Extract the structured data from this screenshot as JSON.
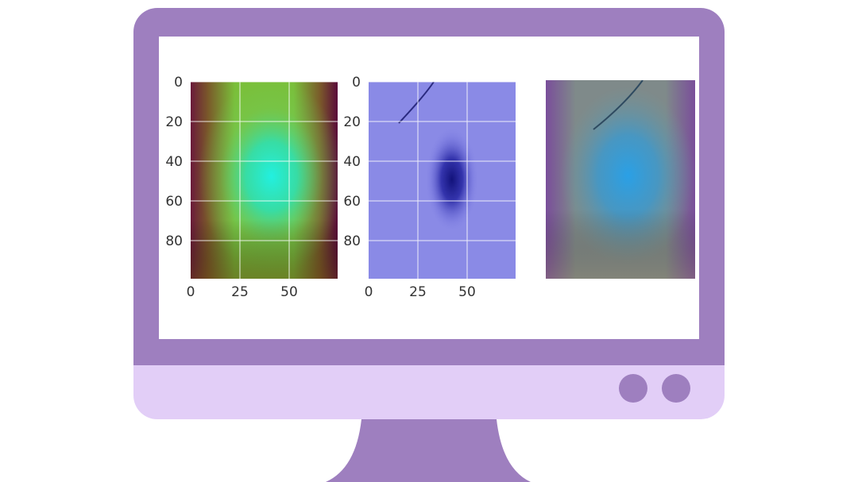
{
  "colors": {
    "frame": "#9e7fbf",
    "chin": "#e2cef7",
    "button": "#9e7fbf",
    "screen": "#ffffff"
  },
  "icons": {
    "buttons": [
      "circle-button-icon",
      "circle-button-icon"
    ]
  },
  "panels": [
    {
      "kind": "heatmap",
      "y_ticks": [
        "0",
        "20",
        "40",
        "60",
        "80"
      ],
      "x_ticks": [
        "0",
        "25",
        "50"
      ]
    },
    {
      "kind": "image",
      "y_ticks": [
        "0",
        "20",
        "40",
        "60",
        "80"
      ],
      "x_ticks": [
        "0",
        "25",
        "50"
      ]
    },
    {
      "kind": "overlay"
    }
  ]
}
